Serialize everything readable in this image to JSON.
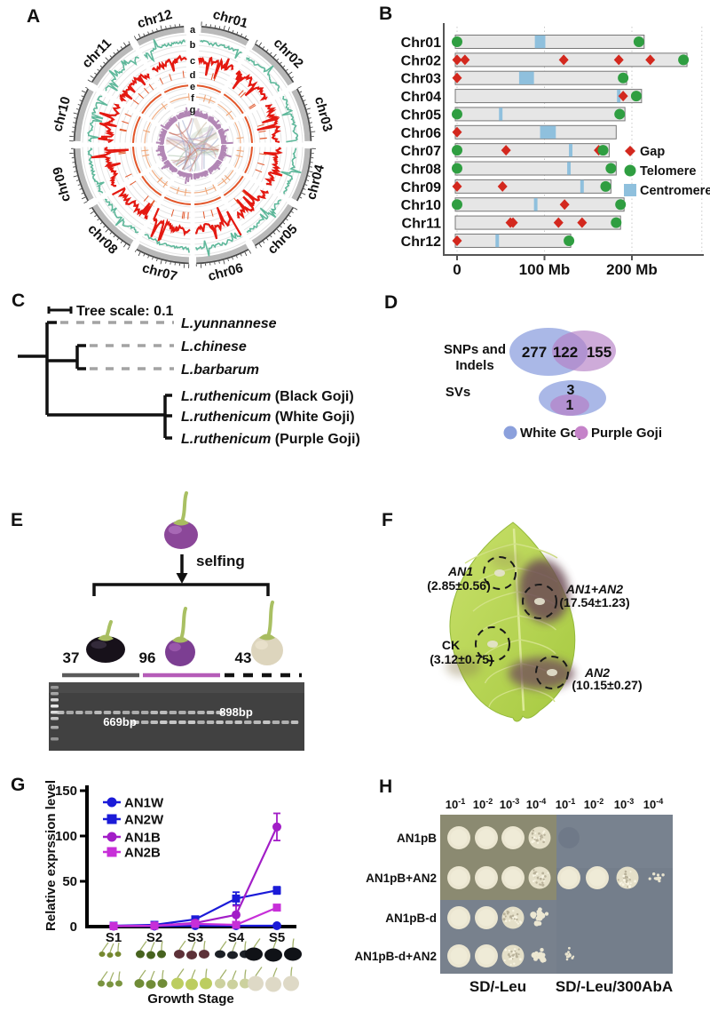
{
  "panel_labels": {
    "A": "A",
    "B": "B",
    "C": "C",
    "D": "D",
    "E": "E",
    "F": "F",
    "G": "G",
    "H": "H"
  },
  "circos": {
    "chromosomes": [
      "chr01",
      "chr02",
      "chr03",
      "chr04",
      "chr05",
      "chr06",
      "chr07",
      "chr08",
      "chr09",
      "chr10",
      "chr11",
      "chr12"
    ],
    "track_letters": [
      "a",
      "b",
      "c",
      "d",
      "e",
      "f",
      "g"
    ],
    "colors": {
      "ideogram": "#b9b9b9",
      "outer_ring": "#4a4a4a",
      "track_b": "#5fb89b",
      "track_c": "#e41911",
      "track_e": "#e2572b",
      "track_f": "#eda06f",
      "track_g": "#b287b5"
    }
  },
  "chrom_map": {
    "chart_data": {
      "type": "chromosome-ideogram",
      "x_ticks": [
        "0",
        "100 Mb",
        "200 Mb"
      ],
      "x_tick_values": [
        0,
        100,
        200
      ],
      "legend": [
        {
          "label": "Gap",
          "marker": "diamond",
          "color": "#d3281e"
        },
        {
          "label": "Telomere",
          "marker": "circle",
          "color": "#2f9e41"
        },
        {
          "label": "Centromere",
          "marker": "square",
          "color": "#8fc0dd"
        }
      ],
      "rows": [
        {
          "name": "Chr01",
          "length": 212,
          "telomeres": [
            0,
            208
          ],
          "gaps": [],
          "centromere": [
            91,
            103
          ]
        },
        {
          "name": "Chr02",
          "length": 261,
          "telomeres": [
            259
          ],
          "gaps": [
            0,
            9,
            122,
            185,
            221
          ],
          "centromere": null
        },
        {
          "name": "Chr03",
          "length": 192,
          "telomeres": [
            190
          ],
          "gaps": [
            0
          ],
          "centromere": [
            73,
            90
          ]
        },
        {
          "name": "Chr04",
          "length": 209,
          "telomeres": [
            205
          ],
          "gaps": [
            190
          ],
          "centromere": [
            185,
            189
          ]
        },
        {
          "name": "Chr05",
          "length": 190,
          "telomeres": [
            0,
            186
          ],
          "gaps": [],
          "centromere": [
            50,
            54
          ]
        },
        {
          "name": "Chr06",
          "length": 180,
          "telomeres": [],
          "gaps": [
            0
          ],
          "centromere": [
            97,
            115
          ]
        },
        {
          "name": "Chr07",
          "length": 172,
          "telomeres": [
            0,
            167
          ],
          "gaps": [
            56,
            162
          ],
          "centromere": [
            130,
            134
          ]
        },
        {
          "name": "Chr08",
          "length": 180,
          "telomeres": [
            0,
            176
          ],
          "gaps": [],
          "centromere": [
            128,
            132
          ]
        },
        {
          "name": "Chr09",
          "length": 174,
          "telomeres": [
            170
          ],
          "gaps": [
            0,
            52
          ],
          "centromere": [
            143,
            147
          ]
        },
        {
          "name": "Chr10",
          "length": 189,
          "telomeres": [
            0,
            187
          ],
          "gaps": [
            123
          ],
          "centromere": [
            90,
            94
          ]
        },
        {
          "name": "Chr11",
          "length": 185,
          "telomeres": [
            182
          ],
          "gaps": [
            61,
            64,
            116,
            143
          ],
          "centromere": null
        },
        {
          "name": "Chr12",
          "length": 128,
          "telomeres": [
            128
          ],
          "gaps": [
            0
          ],
          "centromere": [
            46,
            50
          ]
        }
      ]
    }
  },
  "tree": {
    "scale_label": "Tree scale: 0.1",
    "taxa": [
      {
        "name": "L.yunnannese",
        "suffix": "",
        "dashed": true
      },
      {
        "name": "L.chinese",
        "suffix": "",
        "dashed": true
      },
      {
        "name": "L.barbarum",
        "suffix": "",
        "dashed": true
      },
      {
        "name": "L.ruthenicum",
        "suffix": " (Black Goji)",
        "dashed": false
      },
      {
        "name": "L.ruthenicum",
        "suffix": " (White Goji)",
        "dashed": false
      },
      {
        "name": "L.ruthenicum",
        "suffix": " (Purple Goji)",
        "dashed": false
      }
    ]
  },
  "venn": {
    "group1_label_line1": "SNPs and",
    "group1_label_line2": "Indels",
    "group2_label": "SVs",
    "snps_left": "277",
    "snps_mid": "122",
    "snps_right": "155",
    "svs_top": "3",
    "svs_bottom": "1",
    "colors": {
      "white_goji": "#92a4e0",
      "purple_goji": "#b57fc6"
    },
    "legend": [
      {
        "label": "White Goji",
        "color": "#8ba0dc"
      },
      {
        "label": "Purple Goji",
        "color": "#c583c9"
      }
    ]
  },
  "cross": {
    "selfing_label": "selfing",
    "offspring": [
      {
        "count": "37",
        "color": "black"
      },
      {
        "count": "96",
        "color": "purple"
      },
      {
        "count": "43",
        "color": "white"
      }
    ],
    "gel_labels": {
      "lower": "669bp",
      "upper": "898bp"
    },
    "lanes": {
      "black": 8,
      "purple": 10,
      "white": 8
    }
  },
  "leaf_assay": {
    "spots": [
      {
        "gene": "AN1",
        "value": "(2.85±0.56)"
      },
      {
        "gene": "AN1+AN2",
        "value": "(17.54±1.23)"
      },
      {
        "gene": "CK",
        "value": "(3.12±0.75)"
      },
      {
        "gene": "AN2",
        "value": "(10.15±0.27)"
      }
    ]
  },
  "expression": {
    "chart_data": {
      "type": "line",
      "categories": [
        "S1",
        "S2",
        "S3",
        "S4",
        "S5"
      ],
      "series": [
        {
          "name": "AN1W",
          "marker": "circle",
          "color": "#1b1bd8",
          "values": [
            0.5,
            0.5,
            1,
            1,
            1
          ],
          "errors": [
            0,
            0,
            0,
            0,
            0
          ]
        },
        {
          "name": "AN2W",
          "marker": "square",
          "color": "#1b1bd8",
          "values": [
            1,
            2,
            8,
            31,
            40
          ],
          "errors": [
            0,
            0,
            1,
            7,
            4
          ]
        },
        {
          "name": "AN1B",
          "marker": "circle",
          "color": "#a21ec7",
          "values": [
            0.5,
            1,
            4,
            13,
            110
          ],
          "errors": [
            0,
            0,
            1,
            10,
            15
          ]
        },
        {
          "name": "AN2B",
          "marker": "square",
          "color": "#c72fd8",
          "values": [
            0.5,
            1,
            3,
            2,
            21
          ],
          "errors": [
            0,
            0,
            0,
            0,
            2
          ]
        }
      ],
      "ylabel": "Relative exprssion level",
      "xlabel": "Growth Stage",
      "yticks": [
        0,
        50,
        100,
        150
      ],
      "ylim": [
        0,
        150
      ],
      "fruit_rows": {
        "black_goji": [
          "#75882f",
          "#47631f",
          "#5d3138",
          "#1c2026",
          "#101217"
        ],
        "white_goji": [
          "#7a9440",
          "#708c37",
          "#bccd60",
          "#ccd19e",
          "#ded9c6"
        ]
      }
    }
  },
  "yeast": {
    "dilutions": [
      {
        "base": "10",
        "exp": "-1"
      },
      {
        "base": "10",
        "exp": "-2"
      },
      {
        "base": "10",
        "exp": "-3"
      },
      {
        "base": "10",
        "exp": "-4"
      },
      {
        "base": "10",
        "exp": "-1"
      },
      {
        "base": "10",
        "exp": "-2"
      },
      {
        "base": "10",
        "exp": "-3"
      },
      {
        "base": "10",
        "exp": "-4"
      }
    ],
    "rows": [
      "AN1pB",
      "AN1pB+AN2",
      "AN1pB-d",
      "AN1pB-d+AN2"
    ],
    "plates": [
      {
        "label": "SD/-Leu"
      },
      {
        "label": "SD/-Leu/300AbA"
      }
    ],
    "spots_left": [
      [
        "solid",
        "solid",
        "solid",
        "speckled"
      ],
      [
        "solid",
        "solid",
        "solid",
        "speckled"
      ],
      [
        "solid",
        "solid",
        "speckled",
        "clumps"
      ],
      [
        "solid",
        "solid",
        "speckled",
        "clumps"
      ]
    ],
    "spots_right": [
      [
        "faint",
        "none",
        "none",
        "none"
      ],
      [
        "solid",
        "solid",
        "speckled",
        "sparse"
      ],
      [
        "none",
        "none",
        "none",
        "none"
      ],
      [
        "sparse",
        "none",
        "none",
        "none"
      ]
    ]
  }
}
